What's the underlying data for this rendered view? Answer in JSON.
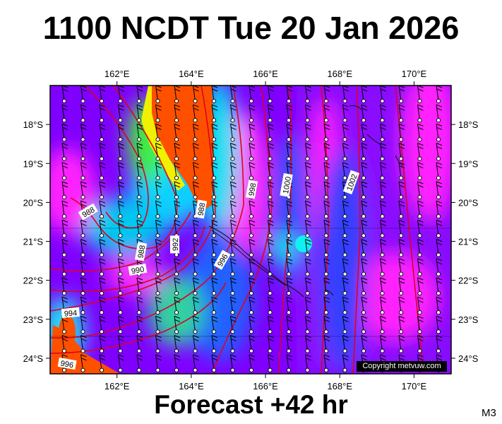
{
  "title": "1100 NCDT Tue 20 Jan 2026",
  "footer": "Forecast +42 hr",
  "model_code": "M3",
  "copyright": "Copyright metvuw.com",
  "chart_data": {
    "type": "map",
    "lon_ticks": [
      "162°E",
      "164°E",
      "166°E",
      "168°E",
      "170°E"
    ],
    "lat_ticks": [
      "18°S",
      "19°S",
      "20°S",
      "21°S",
      "22°S",
      "23°S",
      "24°S"
    ],
    "lon_values": [
      162,
      164,
      166,
      168,
      170
    ],
    "lat_values": [
      -18,
      -19,
      -20,
      -21,
      -22,
      -23,
      -24
    ],
    "lon_range": [
      160.2,
      171.0
    ],
    "lat_range": [
      -24.4,
      -17.0
    ],
    "isobar_labels": [
      "988",
      "990",
      "992",
      "994",
      "996",
      "998",
      "1000",
      "1002"
    ],
    "isobar_color": "#e00020",
    "colors": {
      "magenta": "#ff00ff",
      "purple": "#8000ff",
      "blue": "#2040ff",
      "cyan": "#00e8f0",
      "green": "#40f040",
      "yellow": "#f0f000",
      "orange": "#ff5000"
    }
  }
}
